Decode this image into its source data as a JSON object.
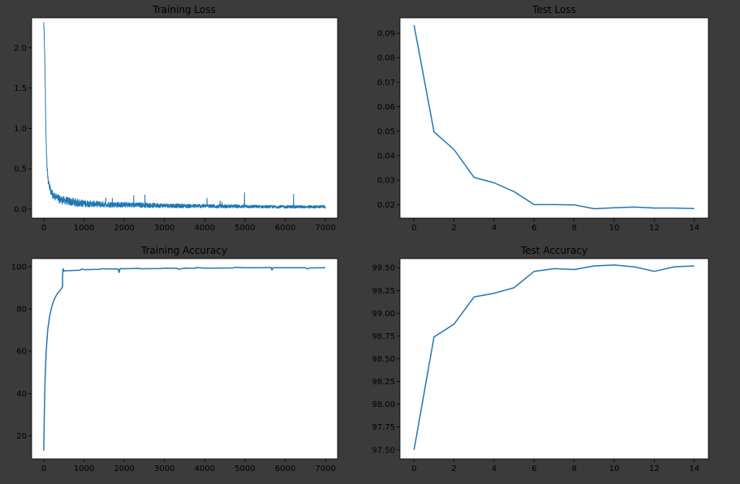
{
  "figure": {
    "background": "#3b3b3b",
    "line_color": "#1f77b4"
  },
  "chart_data": [
    {
      "id": "training-loss",
      "type": "line",
      "title": "Training Loss",
      "xlabel": "",
      "ylabel": "",
      "xlim": [
        -300,
        7300
      ],
      "ylim": [
        -0.11,
        2.37
      ],
      "xticks": [
        0,
        1000,
        2000,
        3000,
        4000,
        5000,
        6000,
        7000
      ],
      "yticks": [
        0.0,
        0.5,
        1.0,
        1.5,
        2.0
      ],
      "xtick_labels": [
        "0",
        "1000",
        "2000",
        "3000",
        "4000",
        "5000",
        "6000",
        "7000"
      ],
      "ytick_labels": [
        "0.0",
        "0.5",
        "1.0",
        "1.5",
        "2.0"
      ],
      "grid": false,
      "x": [
        0,
        10,
        20,
        30,
        40,
        50,
        60,
        80,
        100,
        130,
        160,
        200,
        250,
        300,
        400,
        500,
        700,
        1000,
        1500,
        2000,
        2500,
        3000,
        3500,
        4000,
        4500,
        5000,
        5500,
        6000,
        6500,
        7000
      ],
      "y": [
        2.3,
        2.2,
        2.0,
        1.75,
        1.45,
        1.1,
        0.8,
        0.55,
        0.4,
        0.3,
        0.25,
        0.2,
        0.17,
        0.15,
        0.12,
        0.11,
        0.09,
        0.07,
        0.06,
        0.055,
        0.05,
        0.045,
        0.04,
        0.04,
        0.035,
        0.035,
        0.03,
        0.03,
        0.03,
        0.03
      ],
      "noise_band": "high-frequency fluctuation of roughly ±0.05 around the curve, occasional spikes up to ~0.2"
    },
    {
      "id": "test-loss",
      "type": "line",
      "title": "Test Loss",
      "xlabel": "",
      "ylabel": "",
      "xlim": [
        -0.7,
        14.7
      ],
      "ylim": [
        0.0145,
        0.0963
      ],
      "xticks": [
        0,
        2,
        4,
        6,
        8,
        10,
        12,
        14
      ],
      "yticks": [
        0.02,
        0.03,
        0.04,
        0.05,
        0.06,
        0.07,
        0.08,
        0.09
      ],
      "xtick_labels": [
        "0",
        "2",
        "4",
        "6",
        "8",
        "10",
        "12",
        "14"
      ],
      "ytick_labels": [
        "0.02",
        "0.03",
        "0.04",
        "0.05",
        "0.06",
        "0.07",
        "0.08",
        "0.09"
      ],
      "grid": false,
      "x": [
        0,
        1,
        2,
        3,
        4,
        5,
        6,
        7,
        8,
        9,
        10,
        11,
        12,
        13,
        14
      ],
      "y": [
        0.0933,
        0.0497,
        0.0425,
        0.0311,
        0.0289,
        0.0253,
        0.02,
        0.02,
        0.0199,
        0.0183,
        0.0187,
        0.019,
        0.0186,
        0.0186,
        0.0184
      ]
    },
    {
      "id": "training-accuracy",
      "type": "line",
      "title": "Training Accuracy",
      "xlabel": "",
      "ylabel": "",
      "xlim": [
        -300,
        7300
      ],
      "ylim": [
        9.1,
        103.8
      ],
      "xticks": [
        0,
        1000,
        2000,
        3000,
        4000,
        5000,
        6000,
        7000
      ],
      "yticks": [
        20,
        40,
        60,
        80,
        100
      ],
      "xtick_labels": [
        "0",
        "1000",
        "2000",
        "3000",
        "4000",
        "5000",
        "6000",
        "7000"
      ],
      "ytick_labels": [
        "20",
        "40",
        "60",
        "80",
        "100"
      ],
      "grid": false,
      "x": [
        0,
        15,
        30,
        60,
        100,
        150,
        200,
        250,
        300,
        350,
        400,
        469,
        470,
        480,
        500,
        520,
        600,
        900,
        950,
        1000,
        1400,
        1450,
        1500,
        1850,
        1870,
        1900,
        2000,
        2350,
        2400,
        2900,
        3000,
        3300,
        3350,
        3500,
        3750,
        3800,
        4000,
        4200,
        4700,
        4750,
        5000,
        5300,
        5650,
        5670,
        5700,
        6000,
        6500,
        6550,
        6600,
        7000
      ],
      "y": [
        13,
        30,
        45,
        60,
        70,
        77,
        81,
        84,
        86,
        87.5,
        88.5,
        90.5,
        96,
        99,
        97.8,
        98.1,
        98.1,
        98.3,
        98.9,
        98.6,
        98.7,
        99.1,
        98.9,
        98.9,
        97.2,
        99.1,
        99.0,
        99.2,
        99.0,
        99.1,
        99.3,
        99.2,
        98.8,
        99.3,
        99.2,
        99.6,
        99.3,
        99.3,
        99.4,
        99.7,
        99.5,
        99.5,
        99.6,
        98.4,
        99.5,
        99.5,
        99.5,
        98.9,
        99.4,
        99.5
      ]
    },
    {
      "id": "test-accuracy",
      "type": "line",
      "title": "Test Accuracy",
      "xlabel": "",
      "ylabel": "",
      "xlim": [
        -0.7,
        14.7
      ],
      "ylim": [
        97.4,
        99.6
      ],
      "xticks": [
        0,
        2,
        4,
        6,
        8,
        10,
        12,
        14
      ],
      "yticks": [
        97.5,
        97.75,
        98.0,
        98.25,
        98.5,
        98.75,
        99.0,
        99.25,
        99.5
      ],
      "xtick_labels": [
        "0",
        "2",
        "4",
        "6",
        "8",
        "10",
        "12",
        "14"
      ],
      "ytick_labels": [
        "97.50",
        "97.75",
        "98.00",
        "98.25",
        "98.50",
        "98.75",
        "99.00",
        "99.25",
        "99.50"
      ],
      "grid": false,
      "x": [
        0,
        1,
        2,
        3,
        4,
        5,
        6,
        7,
        8,
        9,
        10,
        11,
        12,
        13,
        14
      ],
      "y": [
        97.5,
        98.74,
        98.88,
        99.18,
        99.22,
        99.28,
        99.46,
        99.49,
        99.48,
        99.52,
        99.53,
        99.51,
        99.46,
        99.51,
        99.52
      ]
    }
  ]
}
